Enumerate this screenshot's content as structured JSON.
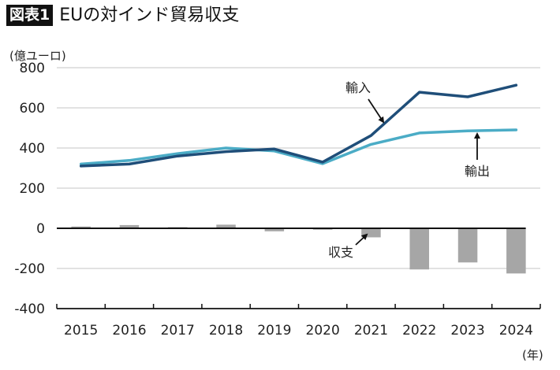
{
  "title": {
    "badge": "図表1",
    "text": "EUの対インド貿易収支"
  },
  "chart_data": {
    "type": "line+bar",
    "title": "EUの対インド貿易収支",
    "ylabel": "(億ユーロ)",
    "xlabel": "(年)",
    "ylim": [
      -400,
      800
    ],
    "yticks": [
      800,
      600,
      400,
      200,
      0,
      -200,
      -400
    ],
    "ytick_labels": [
      "800",
      "600",
      "400",
      "200",
      "0",
      "-200",
      "-400"
    ],
    "categories": [
      "2015",
      "2016",
      "2017",
      "2018",
      "2019",
      "2020",
      "2021",
      "2022",
      "2023",
      "2024"
    ],
    "grid": true,
    "series": [
      {
        "name": "輸入",
        "type": "line",
        "color": "#1f4e79",
        "values": [
          310,
          320,
          360,
          382,
          395,
          330,
          462,
          678,
          655,
          713
        ]
      },
      {
        "name": "輸出",
        "type": "line",
        "color": "#4bacc6",
        "values": [
          320,
          338,
          372,
          400,
          385,
          322,
          418,
          475,
          485,
          490
        ]
      },
      {
        "name": "収支",
        "type": "bar",
        "color": "#a6a6a6",
        "values": [
          9,
          16,
          6,
          18,
          -15,
          -7,
          -45,
          -205,
          -170,
          -225
        ]
      }
    ],
    "annotations": [
      {
        "text": "輸入",
        "target_series": "輸入",
        "target_category": "2021"
      },
      {
        "text": "輸出",
        "target_series": "輸出",
        "target_category": "2023"
      },
      {
        "text": "収支",
        "target_series": "収支",
        "target_category": "2021"
      }
    ]
  }
}
